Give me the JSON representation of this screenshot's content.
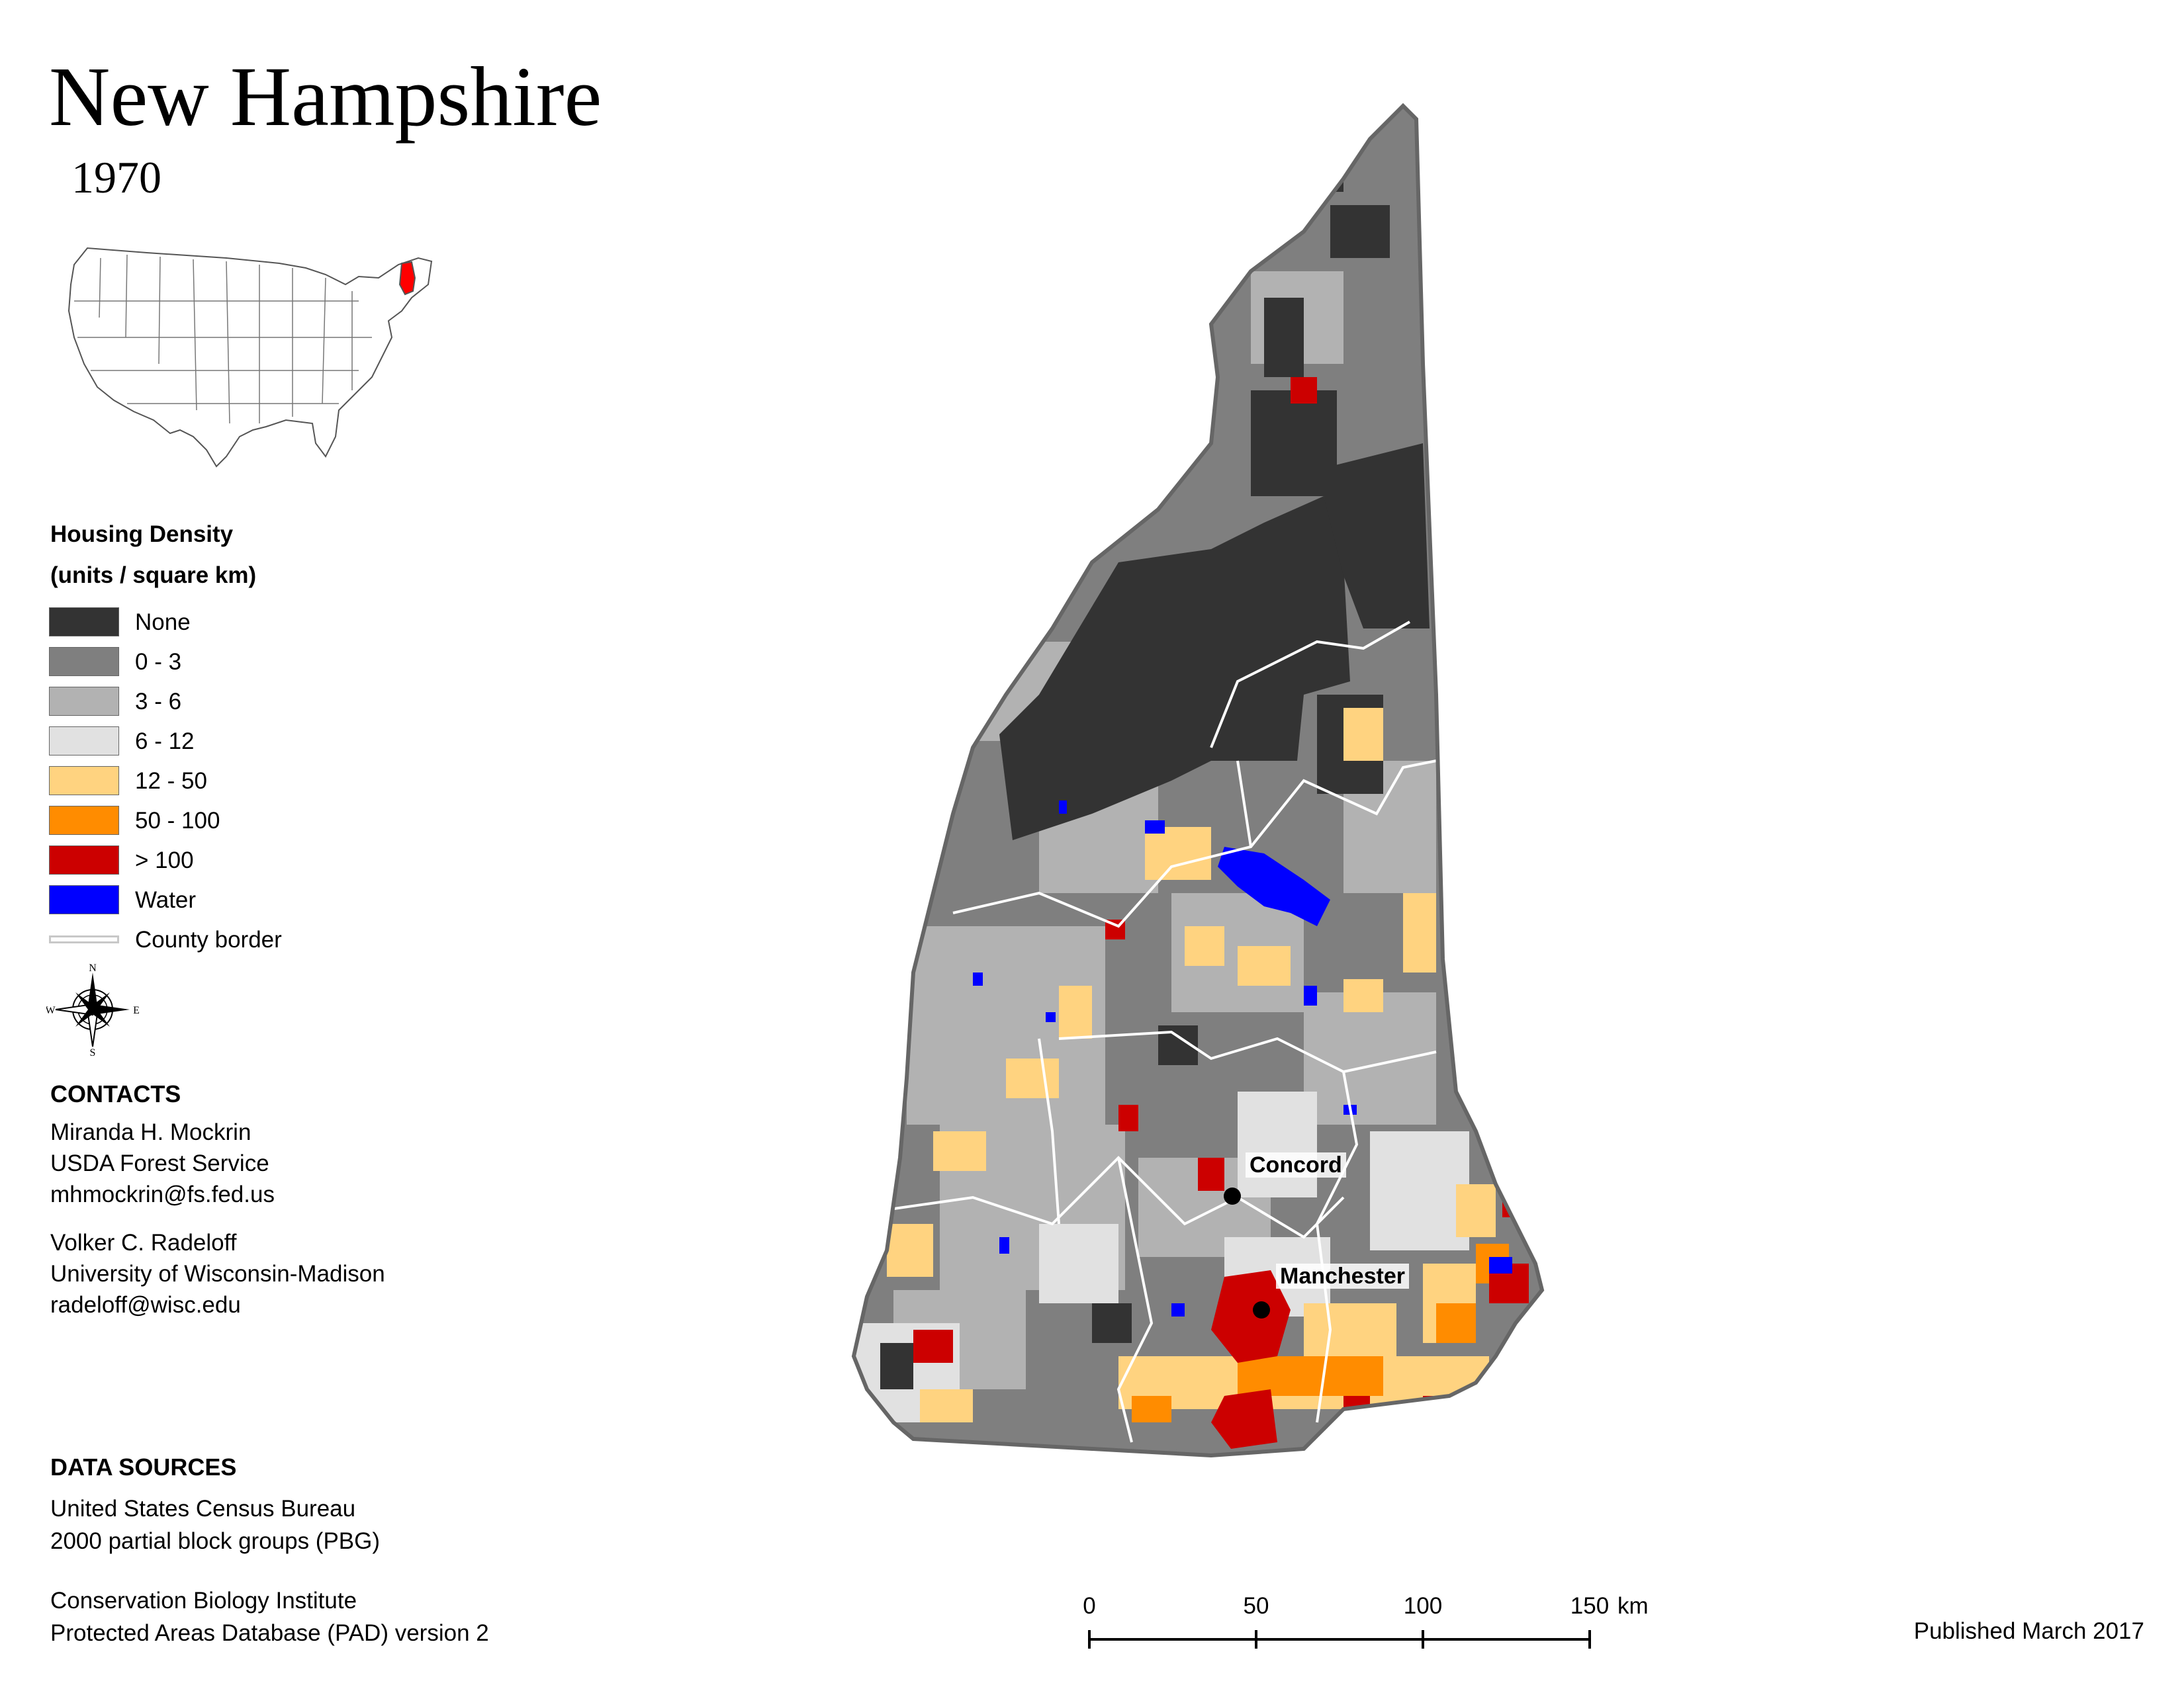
{
  "header": {
    "title": "New Hampshire",
    "year": "1970"
  },
  "legend": {
    "title_line1": "Housing Density",
    "title_line2": "(units / square km)",
    "items": [
      {
        "label": "None",
        "color": "#333333"
      },
      {
        "label": "0 - 3",
        "color": "#7f7f7f"
      },
      {
        "label": "3 - 6",
        "color": "#b2b2b2"
      },
      {
        "label": "6 - 12",
        "color": "#e1e1e1"
      },
      {
        "label": "12 - 50",
        "color": "#ffd380"
      },
      {
        "label": "50 - 100",
        "color": "#ff8c00"
      },
      {
        "label": "> 100",
        "color": "#cc0000"
      },
      {
        "label": "Water",
        "color": "#0000ff"
      }
    ],
    "county_border_label": "County border"
  },
  "compass": {
    "n": "N",
    "s": "S",
    "e": "E",
    "w": "W"
  },
  "contacts": {
    "heading": "CONTACTS",
    "person1": {
      "name": "Miranda H. Mockrin",
      "org": "USDA Forest Service",
      "email": "mhmockrin@fs.fed.us"
    },
    "person2": {
      "name": "Volker C. Radeloff",
      "org": "University of Wisconsin-Madison",
      "email": "radeloff@wisc.edu"
    }
  },
  "data_sources": {
    "heading": "DATA SOURCES",
    "line1": "United States Census Bureau",
    "line2": "2000 partial block groups (PBG)",
    "line3": "Conservation Biology Institute",
    "line4": "Protected Areas Database (PAD) version 2"
  },
  "scale_bar": {
    "ticks": [
      "0",
      "50",
      "100",
      "150"
    ],
    "unit": "km"
  },
  "cities": [
    {
      "name": "Concord"
    },
    {
      "name": "Manchester"
    }
  ],
  "published": "Published March 2017"
}
